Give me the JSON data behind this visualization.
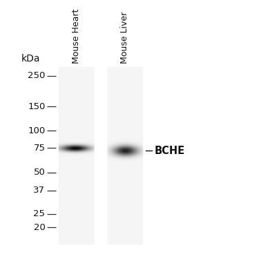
{
  "background_color": "#ffffff",
  "ladder_marks": [
    250,
    150,
    100,
    75,
    50,
    37,
    25,
    20
  ],
  "y_min": 15,
  "y_max": 290,
  "lane1_label": "Mouse Heart",
  "lane2_label": "Mouse Liver",
  "kda_label": "kDa",
  "band_label": "BCHE",
  "lane1_band_kda": 75,
  "lane2_band_kda": 72,
  "lane_gel_color": 235,
  "gel_bg": 245,
  "tick_color": "#333333",
  "label_color": "#111111",
  "font_size_ticks": 9.5,
  "font_size_labels": 9,
  "font_size_band": 10.5,
  "font_size_kda": 10
}
